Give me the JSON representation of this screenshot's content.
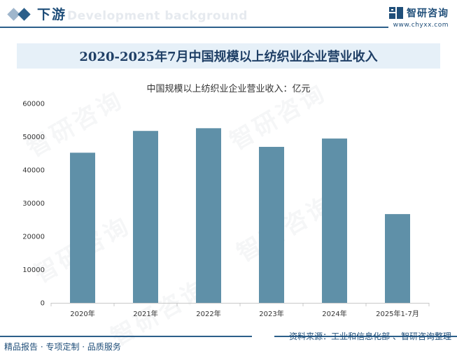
{
  "header": {
    "section_title": "下游",
    "section_subtitle": "Development background",
    "brand_name": "智研咨询",
    "brand_url": "www.chyxx.com",
    "accent_color": "#1f4e79"
  },
  "watermark_text": "智研咨询",
  "chart_data": {
    "type": "bar",
    "title": "2020-2025年7月中国规模以上纺织业企业营业收入",
    "subtitle": "中国规模以上纺织业企业营业收入：亿元",
    "categories": [
      "2020年",
      "2021年",
      "2022年",
      "2023年",
      "2024年",
      "2025年1-7月"
    ],
    "values": [
      45191,
      51749,
      52564,
      46953,
      49457,
      26716
    ],
    "ylim": [
      0,
      60000
    ],
    "yticks": [
      0,
      10000,
      20000,
      30000,
      40000,
      50000,
      60000
    ],
    "xlabel": "",
    "ylabel": "",
    "bar_color": "#5f90a8",
    "grid": false,
    "legend": "none"
  },
  "footer": {
    "left_text": "精品报告 · 专项定制 · 品质服务",
    "right_text": "资料来源：工业和信息化部 、智研咨询整理"
  }
}
